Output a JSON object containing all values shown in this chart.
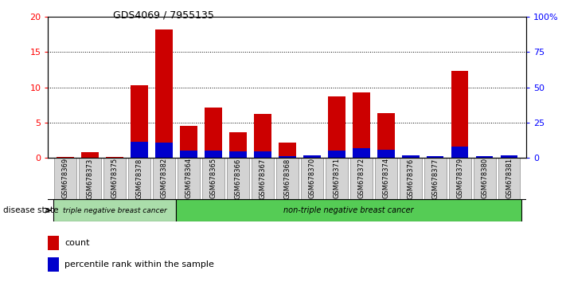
{
  "title": "GDS4069 / 7955135",
  "samples": [
    "GSM678369",
    "GSM678373",
    "GSM678375",
    "GSM678378",
    "GSM678382",
    "GSM678364",
    "GSM678365",
    "GSM678366",
    "GSM678367",
    "GSM678368",
    "GSM678370",
    "GSM678371",
    "GSM678372",
    "GSM678374",
    "GSM678376",
    "GSM678377",
    "GSM678379",
    "GSM678380",
    "GSM678381"
  ],
  "count_values": [
    0.1,
    0.8,
    0.1,
    10.3,
    18.2,
    4.6,
    7.2,
    3.6,
    6.2,
    2.2,
    0.2,
    8.7,
    9.3,
    6.4,
    0.1,
    0.2,
    12.4,
    0.1,
    0.3
  ],
  "percentile_values": [
    0.15,
    0.15,
    0.2,
    11.5,
    11.0,
    5.5,
    5.0,
    4.5,
    4.5,
    1.5,
    2.0,
    5.5,
    7.0,
    6.0,
    2.0,
    1.5,
    8.0,
    1.5,
    2.0
  ],
  "group_split": 5,
  "group1_label": "triple negative breast cancer",
  "group2_label": "non-triple negative breast cancer",
  "group1_color": "#aaddaa",
  "group2_color": "#55cc55",
  "bar_color_count": "#CC0000",
  "bar_color_percentile": "#0000CC",
  "ylim_left": [
    0,
    20
  ],
  "ylim_right": [
    0,
    100
  ],
  "yticks_left": [
    0,
    5,
    10,
    15,
    20
  ],
  "yticks_right": [
    0,
    25,
    50,
    75,
    100
  ],
  "ytick_labels_right": [
    "0",
    "25",
    "50",
    "75",
    "100%"
  ],
  "background_color": "#ffffff",
  "tick_label_bg": "#d3d3d3",
  "legend_count": "count",
  "legend_percentile": "percentile rank within the sample",
  "disease_state_label": "disease state"
}
